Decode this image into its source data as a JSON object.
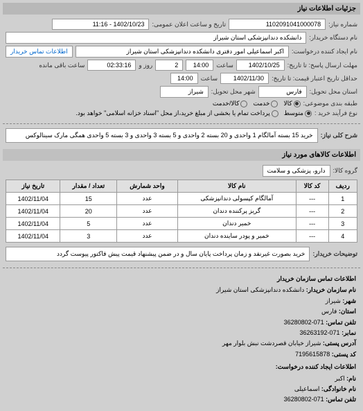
{
  "header": {
    "title": "جزئیات اطلاعات نیاز"
  },
  "form": {
    "number_label": "شماره نیاز:",
    "number_value": "1102091041000078",
    "announce_label": "تاریخ و ساعت اعلان عمومی:",
    "announce_value": "1402/10/23 - 11:16",
    "buyer_org_label": "نام دستگاه خریدار:",
    "buyer_org_value": "دانشکده دندانپزشکی استان شیراز",
    "requester_label": "نام ایجاد کننده درخواست:",
    "requester_value": "اکبر  اسماعیلی امور دفتری دانشکده دندانپزشکی استان شیراز",
    "contact_link": "اطلاعات تماس خریدار",
    "deadline_label": "مهلت ارسال پاسخ: تا تاریخ:",
    "deadline_date": "1402/10/25",
    "time_label": "ساعت",
    "deadline_time": "14:00",
    "remaining_label_days": "روز و",
    "remaining_days": "2",
    "remaining_time": "02:33:16",
    "remaining_label_end": "ساعت باقی مانده",
    "min_validity_label": "حداقل تاریخ اعتبار\nقیمت: تا تاریخ:",
    "min_validity_date": "1402/11/30",
    "min_validity_time": "14:00",
    "delivery_province_label": "استان محل تحویل:",
    "delivery_province": "فارس",
    "delivery_city_label": "شهر محل تحویل:",
    "delivery_city": "شیراز",
    "package_label": "طبقه بندی موضوعی:",
    "package_options": [
      "کالا",
      "خدمت",
      "کالا/خدمت"
    ],
    "package_selected": 0,
    "process_label": "نوع فرآیند خرید :",
    "process_options": [
      "متوسط",
      "پرداخت تمام یا بخشی از مبلغ خرید،از محل \"اسناد خزانه اسلامی\" خواهد بود."
    ],
    "process_selected": 0,
    "main_desc_label": "شرح کلی نیاز:",
    "main_desc": "خرید 15 بسته آمالگام 1 واحدی و 20 بسته 2 واحدی و 5 بسته 3 واحدی و 3 بسته 5 واحدی همگی مارک سینالوکس"
  },
  "goods_section": {
    "title": "اطلاعات کالاهای مورد نیاز",
    "group_label": "گروه کالا:",
    "group_value": "دارو، پزشکی و سلامت",
    "table": {
      "headers": [
        "ردیف",
        "کد کالا",
        "نام کالا",
        "واحد شمارش",
        "تعداد / مقدار",
        "تاریخ نیاز"
      ],
      "rows": [
        [
          "1",
          "---",
          "آمالگام کپسولی دندانپزشکی",
          "عدد",
          "15",
          "1402/11/04"
        ],
        [
          "2",
          "---",
          "گریز پرکننده دندان",
          "عدد",
          "20",
          "1402/11/04"
        ],
        [
          "3",
          "---",
          "خمیر دندان",
          "عدد",
          "5",
          "1402/11/04"
        ],
        [
          "4",
          "---",
          "خمیر و پودر ساینده دندان",
          "عدد",
          "3",
          "1402/11/04"
        ]
      ]
    },
    "buyer_note_label": "توضیحات خریدار:",
    "buyer_note": "خرید بصورت غیرنقد و زمان پرداخت پایان سال و در ضمن پیشنهاد قیمت پیش فاکتور پیوست گردد"
  },
  "contact": {
    "title": "اطلاعات تماس سازمان خریدار",
    "org_name_label": "نام سازمان خریدار:",
    "org_name": "دانشکده دندانپزشکی استان شیراز",
    "city_label": "شهر:",
    "city": "شیراز",
    "province_label": "استان:",
    "province": "فارس",
    "phone_label": "تلفن تماس:",
    "phone": "071-36280802",
    "fax_label": "نمابر:",
    "fax": "071-36263192",
    "postal_addr_label": "آدرس پستی:",
    "postal_addr": "شیراز خیابان قصردشت نبش بلوار مهر",
    "postal_code_label": "کد پستی:",
    "postal_code": "7195615878",
    "requester_title": "اطلاعات ایجاد کننده درخواست:",
    "name_label": "نام:",
    "name": "اکبر",
    "surname_label": "نام خانوادگی:",
    "surname": "اسماعیلی",
    "req_phone_label": "تلفن تماس:",
    "req_phone": "071-36280802"
  }
}
